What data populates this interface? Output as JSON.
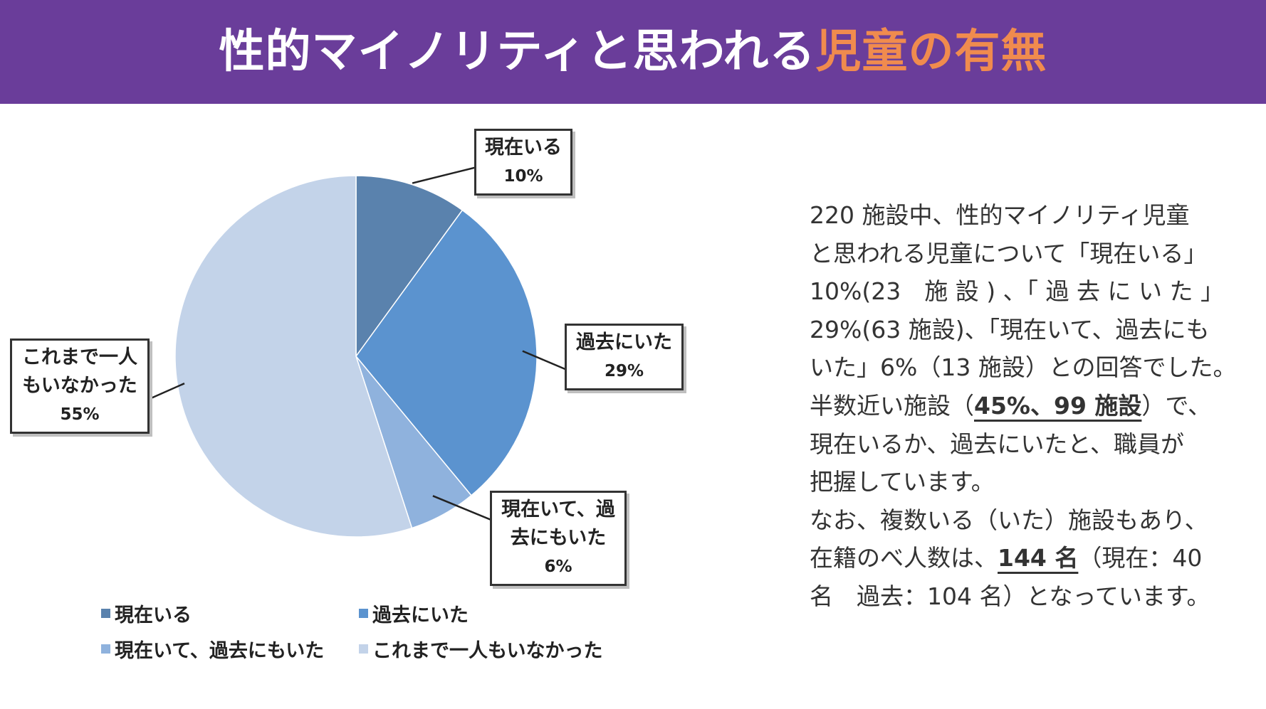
{
  "header": {
    "title_main": "性的マイノリティと思われる",
    "title_accent": "児童の有無",
    "title_color": "#ffffff",
    "accent_color": "#f08b4e",
    "bg_color": "#6a3d9a"
  },
  "chart_data": {
    "type": "pie",
    "start": "12 o'clock, clockwise",
    "slices": [
      {
        "label": "現在いる",
        "label_lines": [
          "現在いる"
        ],
        "value": 10,
        "pct_label": "10%",
        "color": "#5a82ad"
      },
      {
        "label": "過去にいた",
        "label_lines": [
          "過去にいた"
        ],
        "value": 29,
        "pct_label": "29%",
        "color": "#5b93cf"
      },
      {
        "label": "現在いて、過去にもいた",
        "label_lines": [
          "現在いて、過",
          "去にもいた"
        ],
        "value": 6,
        "pct_label": "6%",
        "color": "#8fb2dd"
      },
      {
        "label": "これまで一人もいなかった",
        "label_lines": [
          "これまで一人",
          "もいなかった"
        ],
        "value": 55,
        "pct_label": "55%",
        "color": "#c3d3e9"
      }
    ],
    "legend": {
      "placement": "bottom",
      "items": [
        "現在いる",
        "過去にいた",
        "現在いて、過去にもいた",
        "これまで一人もいなかった"
      ]
    }
  },
  "description": {
    "lines": [
      "220 施設中、性的マイノリティ児童",
      "と思われる児童について「現在いる」",
      "10%(23　施 設 ) 、「 過 去 に い た 」",
      "29%(63 施設)、「現在いて、過去にも",
      "いた」6%（13 施設）との回答でした。",
      "半数近い施設（",
      "45%、99 施設",
      "）で、",
      "現在いるか、過去にいたと、職員が",
      "把握しています。",
      "なお、複数いる（いた）施設もあり、",
      "在籍のべ人数は、",
      "144 名",
      "（現在：40",
      "名　過去：104 名）となっています。"
    ]
  }
}
